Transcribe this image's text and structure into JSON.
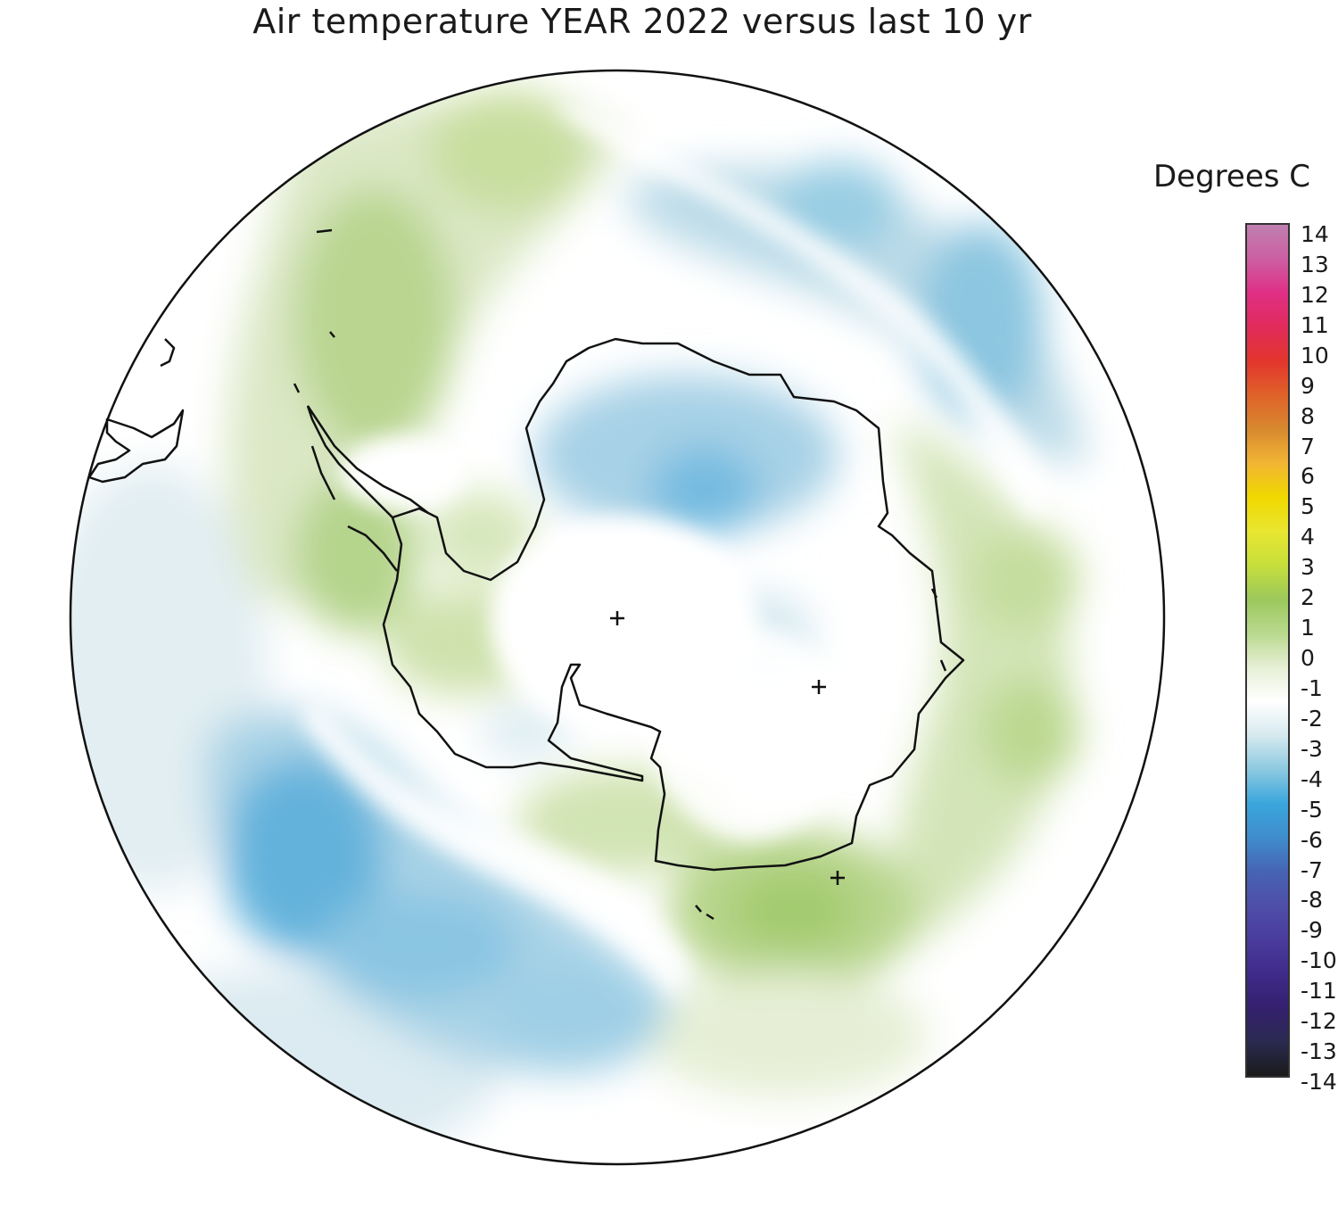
{
  "title": "Air temperature YEAR 2022 versus last 10 yr",
  "legend": {
    "title": "Degrees C",
    "ticks": [
      "14",
      "13",
      "12",
      "11",
      "10",
      "9",
      "8",
      "7",
      "6",
      "5",
      "4",
      "3",
      "2",
      "1",
      "0",
      "-1",
      "-2",
      "-3",
      "-4",
      "-5",
      "-6",
      "-7",
      "-8",
      "-9",
      "-10",
      "-11",
      "-12",
      "-13",
      "-14"
    ],
    "range": [
      -14,
      14
    ],
    "colors": [
      "#1a1a1a",
      "#2a2a50",
      "#34206e",
      "#3f2b8a",
      "#4a3c9c",
      "#4e4ea8",
      "#4764b4",
      "#3f8ccc",
      "#3aa6dc",
      "#8cc9e0",
      "#d6e9ef",
      "#ffffff",
      "#e7efd6",
      "#b9d98e",
      "#9cc85c",
      "#c6df3c",
      "#e8e630",
      "#f0d800",
      "#f1b533",
      "#d8892f",
      "#e0622a",
      "#e2352c",
      "#e02b5a",
      "#e02f86",
      "#cc5fa2",
      "#c080b0"
    ]
  },
  "projection": "south-polar-stereographic",
  "markers": [
    "+",
    "+",
    "+",
    "+"
  ]
}
